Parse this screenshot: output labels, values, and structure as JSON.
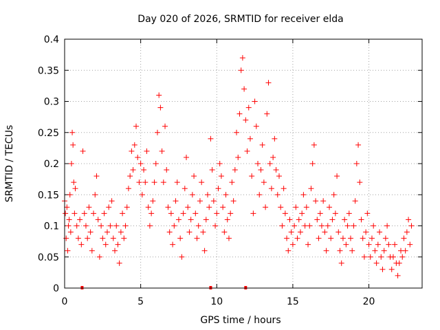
{
  "chart_data": {
    "type": "scatter",
    "title": "Day 020 of 2026, SRMTID for receiver elda",
    "xlabel": "GPS time / hours",
    "ylabel": "SRMTID / TECUs",
    "xlim": [
      0,
      23.5
    ],
    "ylim": [
      0,
      0.4
    ],
    "xticks": [
      0,
      5,
      10,
      15,
      20
    ],
    "xtick_labels": [
      "0",
      "5",
      "10",
      "15",
      "20"
    ],
    "yticks": [
      0,
      0.05,
      0.1,
      0.15,
      0.2,
      0.25,
      0.3,
      0.35,
      0.4
    ],
    "ytick_labels": [
      "0",
      "0.05",
      "0.1",
      "0.15",
      "0.2",
      "0.25",
      "0.3",
      "0.35",
      "0.4"
    ],
    "grid": true,
    "marker": "+",
    "color": "#ff0000",
    "baseline_markers_x": [
      1.15,
      9.6,
      11.9
    ],
    "series": [
      {
        "name": "SRMTID",
        "points": [
          [
            0.0,
            0.14
          ],
          [
            0.05,
            0.12
          ],
          [
            0.1,
            0.08
          ],
          [
            0.15,
            0.13
          ],
          [
            0.2,
            0.06
          ],
          [
            0.25,
            0.1
          ],
          [
            0.3,
            0.11
          ],
          [
            0.35,
            0.15
          ],
          [
            0.4,
            0.09
          ],
          [
            0.45,
            0.2
          ],
          [
            0.5,
            0.25
          ],
          [
            0.55,
            0.23
          ],
          [
            0.6,
            0.17
          ],
          [
            0.65,
            0.12
          ],
          [
            0.7,
            0.16
          ],
          [
            0.8,
            0.1
          ],
          [
            0.9,
            0.08
          ],
          [
            1.0,
            0.11
          ],
          [
            1.1,
            0.07
          ],
          [
            1.2,
            0.22
          ],
          [
            1.3,
            0.12
          ],
          [
            1.4,
            0.1
          ],
          [
            1.5,
            0.08
          ],
          [
            1.6,
            0.13
          ],
          [
            1.7,
            0.09
          ],
          [
            1.8,
            0.06
          ],
          [
            1.9,
            0.12
          ],
          [
            2.0,
            0.15
          ],
          [
            2.1,
            0.18
          ],
          [
            2.2,
            0.11
          ],
          [
            2.3,
            0.05
          ],
          [
            2.4,
            0.1
          ],
          [
            2.5,
            0.08
          ],
          [
            2.6,
            0.12
          ],
          [
            2.7,
            0.07
          ],
          [
            2.8,
            0.09
          ],
          [
            2.9,
            0.13
          ],
          [
            3.0,
            0.1
          ],
          [
            3.1,
            0.14
          ],
          [
            3.2,
            0.08
          ],
          [
            3.3,
            0.06
          ],
          [
            3.4,
            0.1
          ],
          [
            3.5,
            0.07
          ],
          [
            3.6,
            0.04
          ],
          [
            3.7,
            0.09
          ],
          [
            3.8,
            0.12
          ],
          [
            3.9,
            0.08
          ],
          [
            4.0,
            0.1
          ],
          [
            4.1,
            0.13
          ],
          [
            4.2,
            0.16
          ],
          [
            4.3,
            0.18
          ],
          [
            4.4,
            0.22
          ],
          [
            4.5,
            0.19
          ],
          [
            4.6,
            0.23
          ],
          [
            4.7,
            0.26
          ],
          [
            4.8,
            0.21
          ],
          [
            4.9,
            0.17
          ],
          [
            5.0,
            0.2
          ],
          [
            5.1,
            0.15
          ],
          [
            5.2,
            0.19
          ],
          [
            5.3,
            0.17
          ],
          [
            5.4,
            0.22
          ],
          [
            5.5,
            0.13
          ],
          [
            5.6,
            0.1
          ],
          [
            5.7,
            0.12
          ],
          [
            5.8,
            0.14
          ],
          [
            5.9,
            0.17
          ],
          [
            6.0,
            0.2
          ],
          [
            6.1,
            0.25
          ],
          [
            6.2,
            0.31
          ],
          [
            6.3,
            0.29
          ],
          [
            6.4,
            0.22
          ],
          [
            6.5,
            0.17
          ],
          [
            6.6,
            0.26
          ],
          [
            6.7,
            0.19
          ],
          [
            6.8,
            0.13
          ],
          [
            6.9,
            0.09
          ],
          [
            7.0,
            0.12
          ],
          [
            7.1,
            0.07
          ],
          [
            7.2,
            0.1
          ],
          [
            7.3,
            0.14
          ],
          [
            7.4,
            0.17
          ],
          [
            7.5,
            0.11
          ],
          [
            7.6,
            0.08
          ],
          [
            7.7,
            0.05
          ],
          [
            7.8,
            0.12
          ],
          [
            7.9,
            0.16
          ],
          [
            8.0,
            0.21
          ],
          [
            8.1,
            0.13
          ],
          [
            8.2,
            0.09
          ],
          [
            8.3,
            0.11
          ],
          [
            8.4,
            0.15
          ],
          [
            8.5,
            0.18
          ],
          [
            8.6,
            0.12
          ],
          [
            8.7,
            0.08
          ],
          [
            8.8,
            0.1
          ],
          [
            8.9,
            0.14
          ],
          [
            9.0,
            0.17
          ],
          [
            9.1,
            0.09
          ],
          [
            9.2,
            0.06
          ],
          [
            9.3,
            0.11
          ],
          [
            9.4,
            0.15
          ],
          [
            9.5,
            0.13
          ],
          [
            9.6,
            0.24
          ],
          [
            9.7,
            0.19
          ],
          [
            9.8,
            0.14
          ],
          [
            9.9,
            0.1
          ],
          [
            10.0,
            0.12
          ],
          [
            10.1,
            0.16
          ],
          [
            10.2,
            0.2
          ],
          [
            10.3,
            0.18
          ],
          [
            10.4,
            0.13
          ],
          [
            10.5,
            0.09
          ],
          [
            10.6,
            0.15
          ],
          [
            10.7,
            0.11
          ],
          [
            10.8,
            0.08
          ],
          [
            10.9,
            0.12
          ],
          [
            11.0,
            0.17
          ],
          [
            11.1,
            0.14
          ],
          [
            11.2,
            0.19
          ],
          [
            11.3,
            0.25
          ],
          [
            11.4,
            0.21
          ],
          [
            11.5,
            0.28
          ],
          [
            11.6,
            0.35
          ],
          [
            11.7,
            0.37
          ],
          [
            11.8,
            0.32
          ],
          [
            11.9,
            0.27
          ],
          [
            12.0,
            0.22
          ],
          [
            12.1,
            0.29
          ],
          [
            12.2,
            0.24
          ],
          [
            12.3,
            0.18
          ],
          [
            12.4,
            0.12
          ],
          [
            12.5,
            0.3
          ],
          [
            12.6,
            0.26
          ],
          [
            12.7,
            0.2
          ],
          [
            12.8,
            0.15
          ],
          [
            12.9,
            0.19
          ],
          [
            13.0,
            0.23
          ],
          [
            13.1,
            0.17
          ],
          [
            13.2,
            0.13
          ],
          [
            13.3,
            0.28
          ],
          [
            13.4,
            0.33
          ],
          [
            13.5,
            0.2
          ],
          [
            13.6,
            0.16
          ],
          [
            13.7,
            0.21
          ],
          [
            13.8,
            0.24
          ],
          [
            13.9,
            0.19
          ],
          [
            14.0,
            0.15
          ],
          [
            14.1,
            0.18
          ],
          [
            14.2,
            0.13
          ],
          [
            14.3,
            0.1
          ],
          [
            14.4,
            0.16
          ],
          [
            14.5,
            0.12
          ],
          [
            14.6,
            0.08
          ],
          [
            14.7,
            0.06
          ],
          [
            14.8,
            0.11
          ],
          [
            14.9,
            0.09
          ],
          [
            15.0,
            0.07
          ],
          [
            15.1,
            0.1
          ],
          [
            15.2,
            0.13
          ],
          [
            15.3,
            0.08
          ],
          [
            15.4,
            0.11
          ],
          [
            15.5,
            0.09
          ],
          [
            15.6,
            0.12
          ],
          [
            15.7,
            0.15
          ],
          [
            15.8,
            0.1
          ],
          [
            15.9,
            0.13
          ],
          [
            16.0,
            0.07
          ],
          [
            16.1,
            0.1
          ],
          [
            16.2,
            0.16
          ],
          [
            16.3,
            0.2
          ],
          [
            16.4,
            0.23
          ],
          [
            16.5,
            0.14
          ],
          [
            16.6,
            0.11
          ],
          [
            16.7,
            0.08
          ],
          [
            16.8,
            0.12
          ],
          [
            16.9,
            0.1
          ],
          [
            17.0,
            0.14
          ],
          [
            17.1,
            0.09
          ],
          [
            17.2,
            0.06
          ],
          [
            17.3,
            0.1
          ],
          [
            17.4,
            0.13
          ],
          [
            17.5,
            0.08
          ],
          [
            17.6,
            0.11
          ],
          [
            17.7,
            0.15
          ],
          [
            17.8,
            0.12
          ],
          [
            17.9,
            0.18
          ],
          [
            18.0,
            0.09
          ],
          [
            18.1,
            0.06
          ],
          [
            18.2,
            0.04
          ],
          [
            18.3,
            0.08
          ],
          [
            18.4,
            0.11
          ],
          [
            18.5,
            0.07
          ],
          [
            18.6,
            0.1
          ],
          [
            18.7,
            0.12
          ],
          [
            18.8,
            0.08
          ],
          [
            18.9,
            0.06
          ],
          [
            19.0,
            0.1
          ],
          [
            19.1,
            0.14
          ],
          [
            19.2,
            0.2
          ],
          [
            19.3,
            0.23
          ],
          [
            19.4,
            0.17
          ],
          [
            19.5,
            0.11
          ],
          [
            19.6,
            0.08
          ],
          [
            19.7,
            0.05
          ],
          [
            19.8,
            0.09
          ],
          [
            19.9,
            0.12
          ],
          [
            20.0,
            0.07
          ],
          [
            20.1,
            0.05
          ],
          [
            20.2,
            0.08
          ],
          [
            20.3,
            0.1
          ],
          [
            20.4,
            0.06
          ],
          [
            20.5,
            0.04
          ],
          [
            20.6,
            0.07
          ],
          [
            20.7,
            0.09
          ],
          [
            20.8,
            0.05
          ],
          [
            20.9,
            0.03
          ],
          [
            21.0,
            0.06
          ],
          [
            21.1,
            0.08
          ],
          [
            21.2,
            0.1
          ],
          [
            21.3,
            0.07
          ],
          [
            21.4,
            0.05
          ],
          [
            21.5,
            0.03
          ],
          [
            21.6,
            0.05
          ],
          [
            21.7,
            0.07
          ],
          [
            21.8,
            0.04
          ],
          [
            21.9,
            0.02
          ],
          [
            22.0,
            0.04
          ],
          [
            22.1,
            0.06
          ],
          [
            22.2,
            0.05
          ],
          [
            22.3,
            0.08
          ],
          [
            22.4,
            0.06
          ],
          [
            22.5,
            0.09
          ],
          [
            22.6,
            0.11
          ],
          [
            22.7,
            0.07
          ],
          [
            22.8,
            0.1
          ]
        ]
      }
    ]
  }
}
